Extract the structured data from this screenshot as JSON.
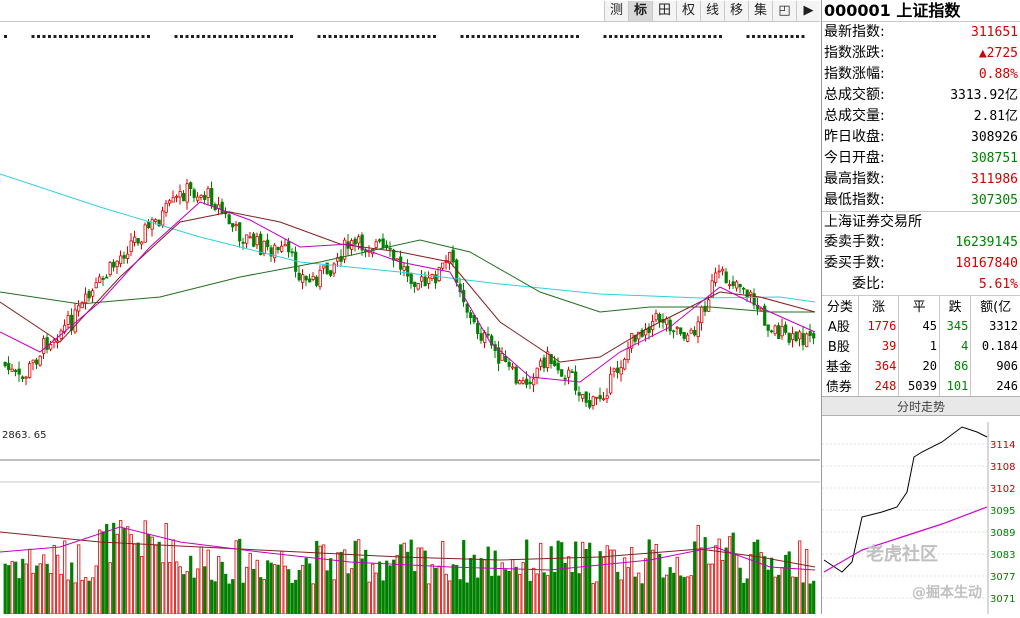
{
  "toolbar": {
    "buttons": [
      "测",
      "标",
      "田",
      "权",
      "线",
      "移",
      "集",
      "◰",
      "▶"
    ]
  },
  "main_chart": {
    "low_label": "2863. 65"
  },
  "panel": {
    "code": "000001",
    "name": "上证指数",
    "quotes": [
      {
        "label": "最新指数:",
        "value": "311651",
        "color": "red"
      },
      {
        "label": "指数涨跌:",
        "value": "▲2725",
        "color": "red"
      },
      {
        "label": "指数涨幅:",
        "value": "0.88%",
        "color": "red"
      },
      {
        "label": "总成交额:",
        "value": "3313.92亿",
        "color": "black"
      },
      {
        "label": "总成交量:",
        "value": "2.81亿",
        "color": "black"
      },
      {
        "label": "昨日收盘:",
        "value": "308926",
        "color": "black"
      },
      {
        "label": "今日开盘:",
        "value": "308751",
        "color": "green"
      },
      {
        "label": "最高指数:",
        "value": "311986",
        "color": "red"
      },
      {
        "label": "最低指数:",
        "value": "307305",
        "color": "green"
      }
    ],
    "exchange": "上海证券交易所",
    "orders": [
      {
        "label": "委卖手数:",
        "value": "16239145",
        "color": "green"
      },
      {
        "label": "委买手数:",
        "value": "18167840",
        "color": "red"
      },
      {
        "label": "委比:",
        "value": "5.61%",
        "color": "red"
      }
    ],
    "breadth_headers": [
      "分类",
      "涨",
      "平",
      "跌",
      "额(亿"
    ],
    "breadth_rows": [
      {
        "cat": "A股",
        "up": "1776",
        "flat": "45",
        "down": "345",
        "amt": "3312"
      },
      {
        "cat": "B股",
        "up": "39",
        "flat": "1",
        "down": "4",
        "amt": "0.184"
      },
      {
        "cat": "基金",
        "up": "364",
        "flat": "20",
        "down": "86",
        "amt": "906"
      },
      {
        "cat": "债券",
        "up": "248",
        "flat": "5039",
        "down": "101",
        "amt": "246"
      }
    ],
    "intraday_title": "分时走势",
    "intraday_ticks": [
      "3114",
      "3108",
      "3102",
      "3095",
      "3089",
      "3083",
      "3077",
      "3071"
    ],
    "watermark1": "老虎社区",
    "watermark2": "@掘本生动"
  },
  "colors": {
    "up": "#e00000",
    "down": "#008000",
    "ma_cyan": "#30d0e0",
    "ma_green": "#207020",
    "ma_brown": "#802020",
    "ma_magenta": "#c000c0"
  }
}
